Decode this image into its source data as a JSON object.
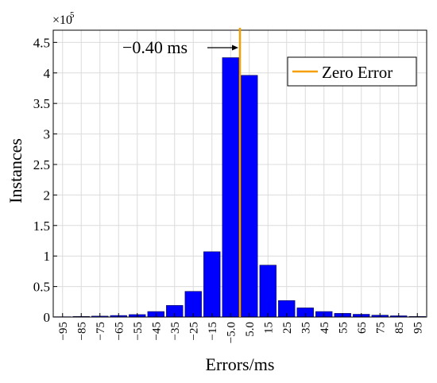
{
  "chart_data": {
    "type": "bar",
    "title": "",
    "xlabel": "Errors/ms",
    "ylabel": "Instances",
    "y_exponent_label": "×10",
    "y_exponent_power": "5",
    "ylim": [
      0,
      4.7
    ],
    "yticks": [
      0,
      0.5,
      1,
      1.5,
      2,
      2.5,
      3,
      3.5,
      4,
      4.5
    ],
    "ytick_labels": [
      "0",
      "0.5",
      "1",
      "1.5",
      "2",
      "2.5",
      "3",
      "3.5",
      "4",
      "4.5"
    ],
    "grid": true,
    "categories": [
      "−95",
      "−85",
      "−75",
      "−65",
      "−55",
      "−45",
      "−35",
      "−25",
      "−15",
      "−5.0",
      "5.0",
      "15",
      "25",
      "35",
      "45",
      "55",
      "65",
      "75",
      "85",
      "95"
    ],
    "values": [
      0.005,
      0.01,
      0.015,
      0.025,
      0.04,
      0.09,
      0.19,
      0.42,
      1.07,
      4.25,
      3.96,
      0.85,
      0.27,
      0.15,
      0.09,
      0.06,
      0.045,
      0.03,
      0.02,
      0.01
    ],
    "bar_color": "#0000ff",
    "zero_line": {
      "label": "Zero Error",
      "color": "#f5a000",
      "position_category_boundary": 10
    },
    "annotation": {
      "text": "−0.40 ms"
    },
    "legend_position": "top-right"
  }
}
